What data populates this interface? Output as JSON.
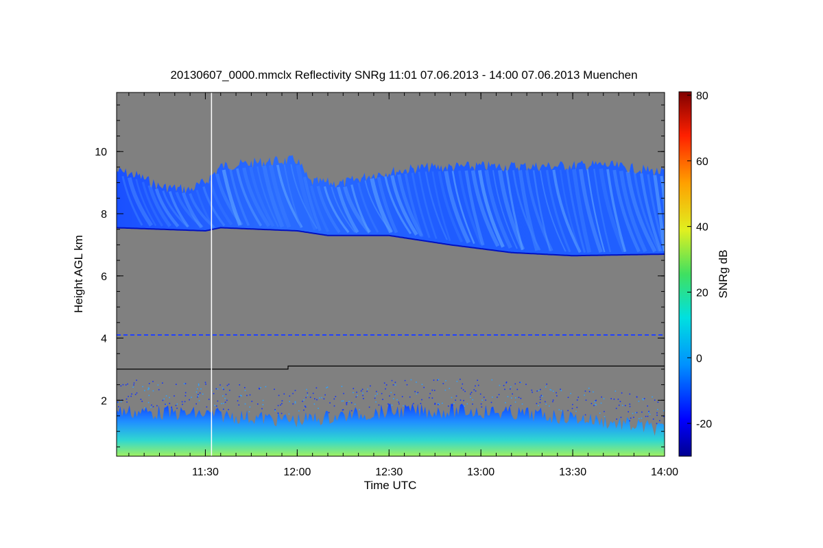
{
  "chart_data": {
    "type": "heatmap",
    "title": "20130607_0000.mmclx Reflectivity SNRg   11:01 07.06.2013 - 14:00 07.06.2013 Muenchen",
    "xlabel": "Time UTC",
    "ylabel": "Height AGL km",
    "colorbar_label": "SNRg dB",
    "x_range_minutes_utc": [
      661,
      840
    ],
    "y_range_km": [
      0.2,
      11.9
    ],
    "x_ticks": [
      {
        "label": "11:30",
        "minutes": 690
      },
      {
        "label": "12:00",
        "minutes": 720
      },
      {
        "label": "12:30",
        "minutes": 750
      },
      {
        "label": "13:00",
        "minutes": 780
      },
      {
        "label": "13:30",
        "minutes": 810
      },
      {
        "label": "14:00",
        "minutes": 840
      }
    ],
    "y_ticks": [
      {
        "label": "2",
        "km": 2
      },
      {
        "label": "4",
        "km": 4
      },
      {
        "label": "6",
        "km": 6
      },
      {
        "label": "8",
        "km": 8
      },
      {
        "label": "10",
        "km": 10
      }
    ],
    "colorbar_range_db": [
      -30,
      80
    ],
    "colorbar_ticks": [
      {
        "label": "-20",
        "db": -20
      },
      {
        "label": "0",
        "db": 0
      },
      {
        "label": "20",
        "db": 20
      },
      {
        "label": "40",
        "db": 40
      },
      {
        "label": "60",
        "db": 60
      },
      {
        "label": "80",
        "db": 80
      }
    ],
    "background_color": "#808080",
    "cloud_layer": {
      "base_km": [
        {
          "t": 661,
          "km": 7.55
        },
        {
          "t": 690,
          "km": 7.45
        },
        {
          "t": 695,
          "km": 7.55
        },
        {
          "t": 720,
          "km": 7.45
        },
        {
          "t": 730,
          "km": 7.3
        },
        {
          "t": 750,
          "km": 7.3
        },
        {
          "t": 770,
          "km": 7.0
        },
        {
          "t": 790,
          "km": 6.75
        },
        {
          "t": 810,
          "km": 6.65
        },
        {
          "t": 840,
          "km": 6.7
        }
      ],
      "top_km": [
        {
          "t": 661,
          "km": 9.55
        },
        {
          "t": 668,
          "km": 9.4
        },
        {
          "t": 675,
          "km": 9.05
        },
        {
          "t": 685,
          "km": 8.95
        },
        {
          "t": 690,
          "km": 9.2
        },
        {
          "t": 695,
          "km": 9.7
        },
        {
          "t": 710,
          "km": 9.85
        },
        {
          "t": 720,
          "km": 9.9
        },
        {
          "t": 724,
          "km": 9.2
        },
        {
          "t": 735,
          "km": 9.15
        },
        {
          "t": 745,
          "km": 9.45
        },
        {
          "t": 760,
          "km": 9.65
        },
        {
          "t": 780,
          "km": 9.7
        },
        {
          "t": 800,
          "km": 9.7
        },
        {
          "t": 820,
          "km": 9.75
        },
        {
          "t": 840,
          "km": 9.5
        }
      ],
      "snr_db_range": [
        -22,
        -5
      ]
    },
    "boundary_layer_top_km": [
      {
        "t": 661,
        "km": 1.9
      },
      {
        "t": 690,
        "km": 1.8
      },
      {
        "t": 720,
        "km": 1.6
      },
      {
        "t": 750,
        "km": 1.9
      },
      {
        "t": 780,
        "km": 1.9
      },
      {
        "t": 810,
        "km": 1.7
      },
      {
        "t": 840,
        "km": 1.3
      }
    ],
    "boundary_layer_snr_db_range": [
      -15,
      30
    ],
    "artifact_line_km": 4.1,
    "reference_line_km": [
      {
        "t": 661,
        "km": 3.0
      },
      {
        "t": 717,
        "km": 3.0
      },
      {
        "t": 717,
        "km": 3.1
      },
      {
        "t": 840,
        "km": 3.1
      }
    ],
    "vertical_marker_minutes": 692
  },
  "colors": {
    "plot_background": "#808080",
    "marker_line": "#ffffff",
    "reference_line": "#000000"
  }
}
